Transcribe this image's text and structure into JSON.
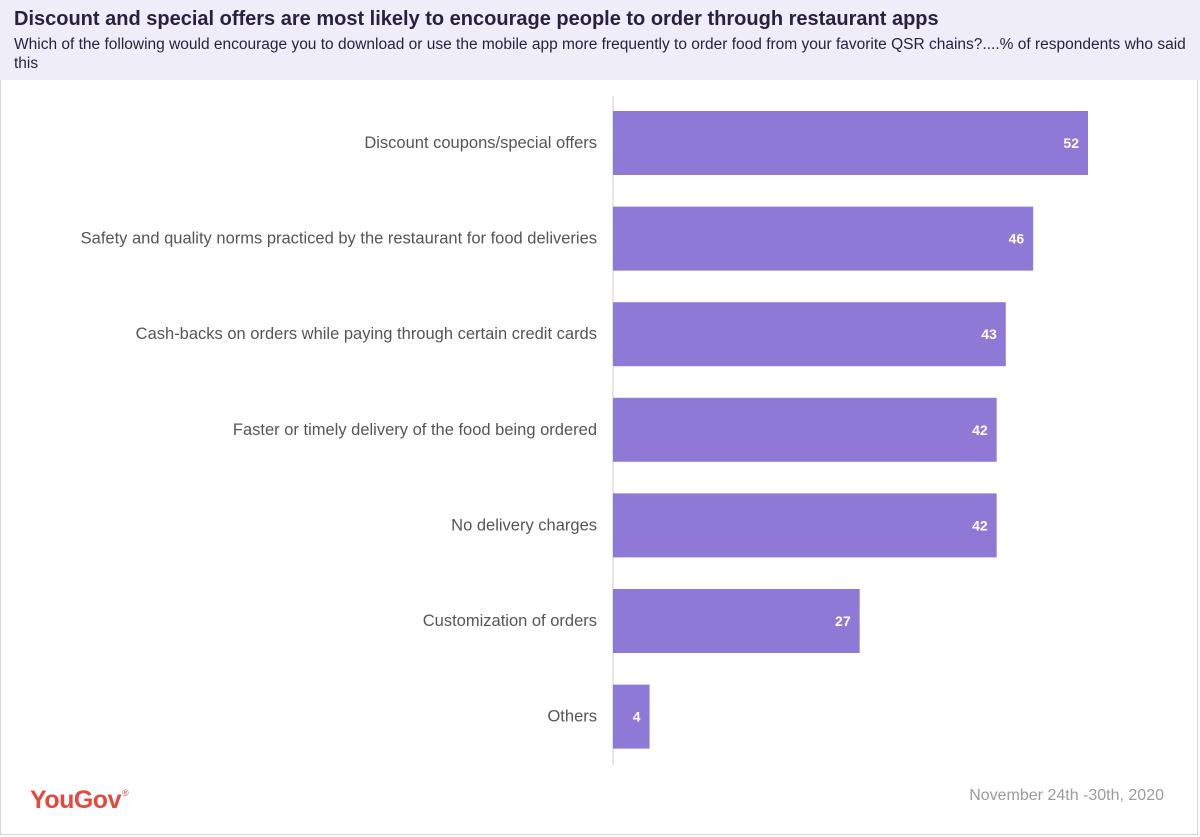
{
  "header": {
    "title": "Discount and special offers are most likely to encourage people to order through restaurant apps",
    "subtitle": "Which of the following would encourage you to download or use the mobile app more frequently to order food from your favorite QSR chains?....% of respondents who said this"
  },
  "footer": {
    "logo_text": "YouGov",
    "logo_mark": "®",
    "date": "November 24th -30th, 2020"
  },
  "colors": {
    "bar": "#8e79d6",
    "header_bg": "#efedf8",
    "axis": "#cccccc",
    "logo": "#e14b3f"
  },
  "chart_data": {
    "type": "bar",
    "orientation": "horizontal",
    "title": "Discount and special offers are most likely to encourage people to order through restaurant apps",
    "xlabel": "",
    "ylabel": "",
    "xlim": [
      0,
      52
    ],
    "grid": false,
    "categories": [
      "Discount coupons/special offers",
      "Safety and quality norms practiced by the restaurant for food deliveries",
      "Cash-backs on orders while paying through certain credit cards",
      "Faster or timely delivery of the food being ordered",
      "No delivery charges",
      "Customization of orders",
      "Others"
    ],
    "values": [
      52,
      46,
      43,
      42,
      42,
      27,
      4
    ]
  }
}
